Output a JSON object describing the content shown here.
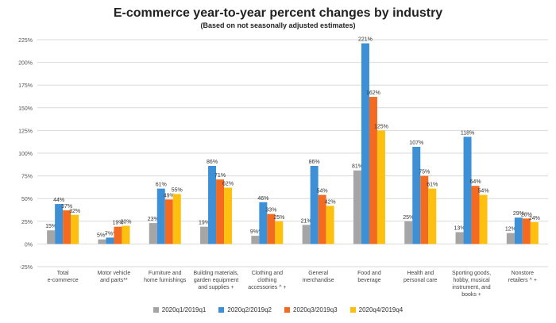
{
  "chart_data": {
    "type": "bar",
    "title": "E-commerce year-to-year percent changes by industry",
    "subtitle": "(Based on not seasonally adjusted estimates)",
    "xlabel": "",
    "ylabel": "",
    "ylim": [
      -25,
      225
    ],
    "yticks": [
      "-25%",
      "0%",
      "25%",
      "50%",
      "75%",
      "100%",
      "125%",
      "150%",
      "175%",
      "200%",
      "225%"
    ],
    "ytick_values": [
      -25,
      0,
      25,
      50,
      75,
      100,
      125,
      150,
      175,
      200,
      225
    ],
    "grid": true,
    "legend_position": "bottom",
    "categories": [
      [
        "Total",
        "e-commerce"
      ],
      [
        "Motor vehicle",
        "and parts**"
      ],
      [
        "Furniture and",
        "home furnishings"
      ],
      [
        "Building materials,",
        "garden equipment",
        "and supplies +"
      ],
      [
        "Clothing and",
        "clothing",
        "accessories ^ +"
      ],
      [
        "General",
        "merchandise"
      ],
      [
        "Food and",
        "beverage"
      ],
      [
        "Health and",
        "personal care"
      ],
      [
        "Sporting goods,",
        "hobby, musical",
        "instrument, and",
        "books +"
      ],
      [
        "Nonstore",
        "retailers ^ +"
      ]
    ],
    "series": [
      {
        "name": "2020q1/2019q1",
        "color": "#a5a5a5",
        "values": [
          15,
          5,
          23,
          19,
          9,
          21,
          81,
          25,
          13,
          12
        ],
        "labels": [
          "15%",
          "5%*",
          "23%",
          "19%",
          "9%*",
          "21%",
          "81%",
          "25%",
          "13%",
          "12%"
        ]
      },
      {
        "name": "2020q2/2019q2",
        "color": "#3d8fd6",
        "values": [
          44,
          7,
          61,
          86,
          46,
          86,
          221,
          107,
          118,
          29
        ],
        "labels": [
          "44%",
          "7%*",
          "61%",
          "86%",
          "46%",
          "86%",
          "221%",
          "107%",
          "118%",
          "29%"
        ]
      },
      {
        "name": "2020q3/2019q3",
        "color": "#f26b21",
        "values": [
          37,
          19,
          49,
          71,
          33,
          54,
          162,
          75,
          64,
          28
        ],
        "labels": [
          "37%",
          "19%",
          "49%",
          "71%",
          "33%",
          "54%",
          "162%",
          "75%",
          "64%",
          "28%"
        ]
      },
      {
        "name": "2020q4/2019q4",
        "color": "#fdc00f",
        "values": [
          32,
          20,
          55,
          62,
          25,
          42,
          125,
          61,
          54,
          24
        ],
        "labels": [
          "32%",
          "20%",
          "55%",
          "62%",
          "25%",
          "42%",
          "125%",
          "61%",
          "54%",
          "24%"
        ]
      }
    ]
  }
}
